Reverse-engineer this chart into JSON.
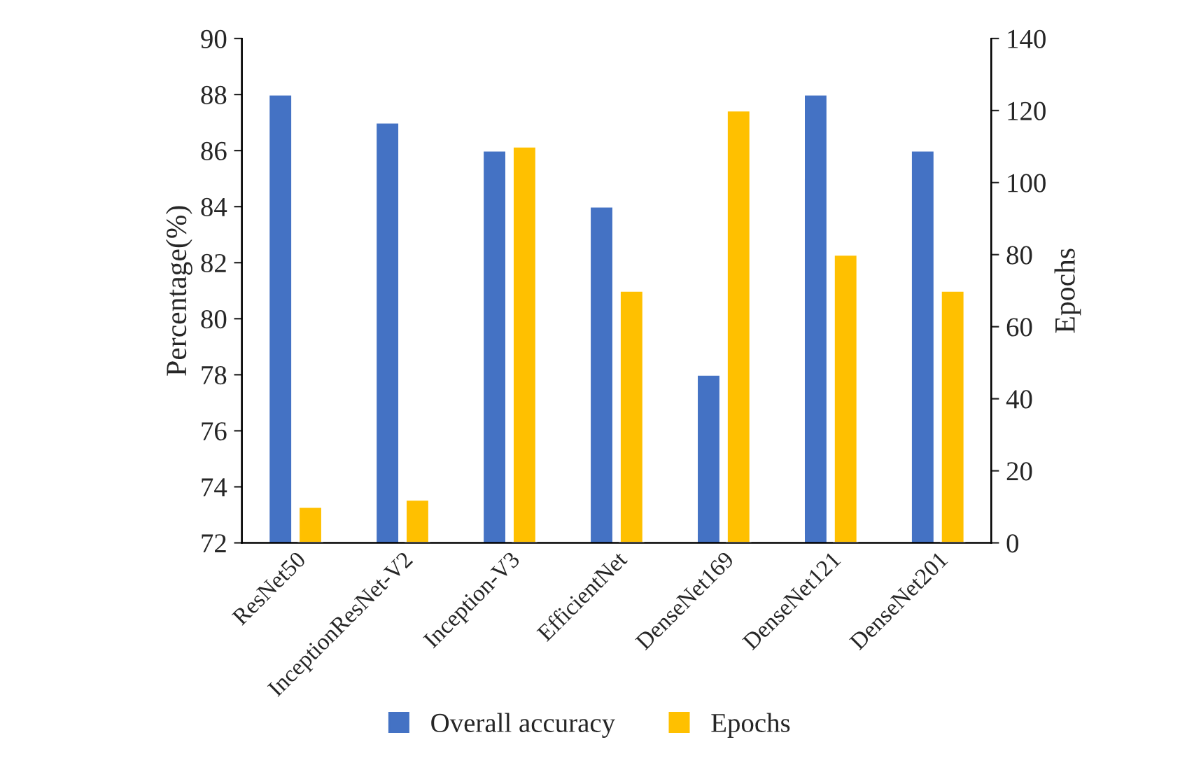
{
  "chart_data": {
    "type": "bar",
    "xlabel": null,
    "ylabel": "Percentage(%)",
    "y2label": "Epochs",
    "categories": [
      "ResNet50",
      "InceptionResNet-V2",
      "Inception-V3",
      "EfficientNet",
      "DenseNet169",
      "DenseNet121",
      "DenseNet201"
    ],
    "series": [
      {
        "name": "Overall accuracy",
        "color": "#4472c4",
        "values": [
          88,
          87,
          86,
          84,
          78,
          88,
          86
        ]
      },
      {
        "name": "Epochs",
        "color": "#ffc000",
        "axis": "y2",
        "values": [
          10,
          12,
          110,
          70,
          120,
          80,
          70
        ]
      }
    ],
    "ylim": [
      72,
      90
    ],
    "yticks": [
      72,
      74,
      76,
      78,
      80,
      82,
      84,
      86,
      88,
      90
    ],
    "y2lim": [
      0,
      140
    ],
    "y2ticks": [
      0,
      20,
      40,
      60,
      80,
      100,
      120,
      140
    ],
    "grid": false,
    "legend": "bottom"
  }
}
